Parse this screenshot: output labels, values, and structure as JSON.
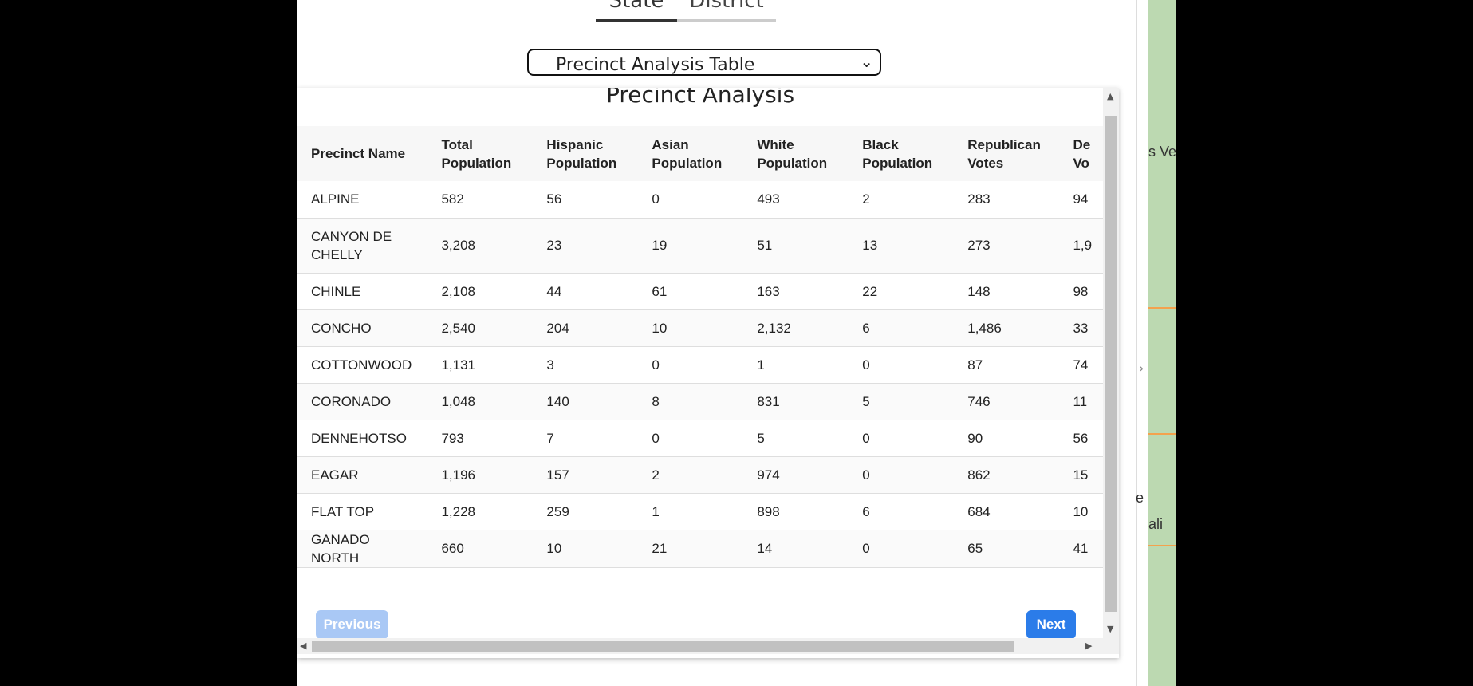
{
  "tabs": [
    "State",
    "District"
  ],
  "select": {
    "value": "Precinct Analysis Table"
  },
  "table": {
    "title": "Precinct Analysis",
    "headers": [
      "Precinct Name",
      "Total Population",
      "Hispanic Population",
      "Asian Population",
      "White Population",
      "Black Population",
      "Republican Votes",
      "De Vo"
    ],
    "rows": [
      [
        "ALPINE",
        "582",
        "56",
        "0",
        "493",
        "2",
        "283",
        "94"
      ],
      [
        "CANYON DE CHELLY",
        "3,208",
        "23",
        "19",
        "51",
        "13",
        "273",
        "1,9"
      ],
      [
        "CHINLE",
        "2,108",
        "44",
        "61",
        "163",
        "22",
        "148",
        "98"
      ],
      [
        "CONCHO",
        "2,540",
        "204",
        "10",
        "2,132",
        "6",
        "1,486",
        "33"
      ],
      [
        "COTTONWOOD",
        "1,131",
        "3",
        "0",
        "1",
        "0",
        "87",
        "74"
      ],
      [
        "CORONADO",
        "1,048",
        "140",
        "8",
        "831",
        "5",
        "746",
        "11"
      ],
      [
        "DENNEHOTSO",
        "793",
        "7",
        "0",
        "5",
        "0",
        "90",
        "56"
      ],
      [
        "EAGAR",
        "1,196",
        "157",
        "2",
        "974",
        "0",
        "862",
        "15"
      ],
      [
        "FLAT TOP",
        "1,228",
        "259",
        "1",
        "898",
        "6",
        "684",
        "10"
      ],
      [
        "GANADO NORTH",
        "660",
        "10",
        "21",
        "14",
        "0",
        "65",
        "41"
      ]
    ]
  },
  "pagination": {
    "previous": "Previous",
    "next": "Next"
  },
  "map_labels": {
    "top": "s Ve",
    "mid": "e",
    "bottom": "ali"
  },
  "colors": {
    "next_button": "#2b7ce9",
    "prev_button_disabled": "#a9c8f5"
  }
}
